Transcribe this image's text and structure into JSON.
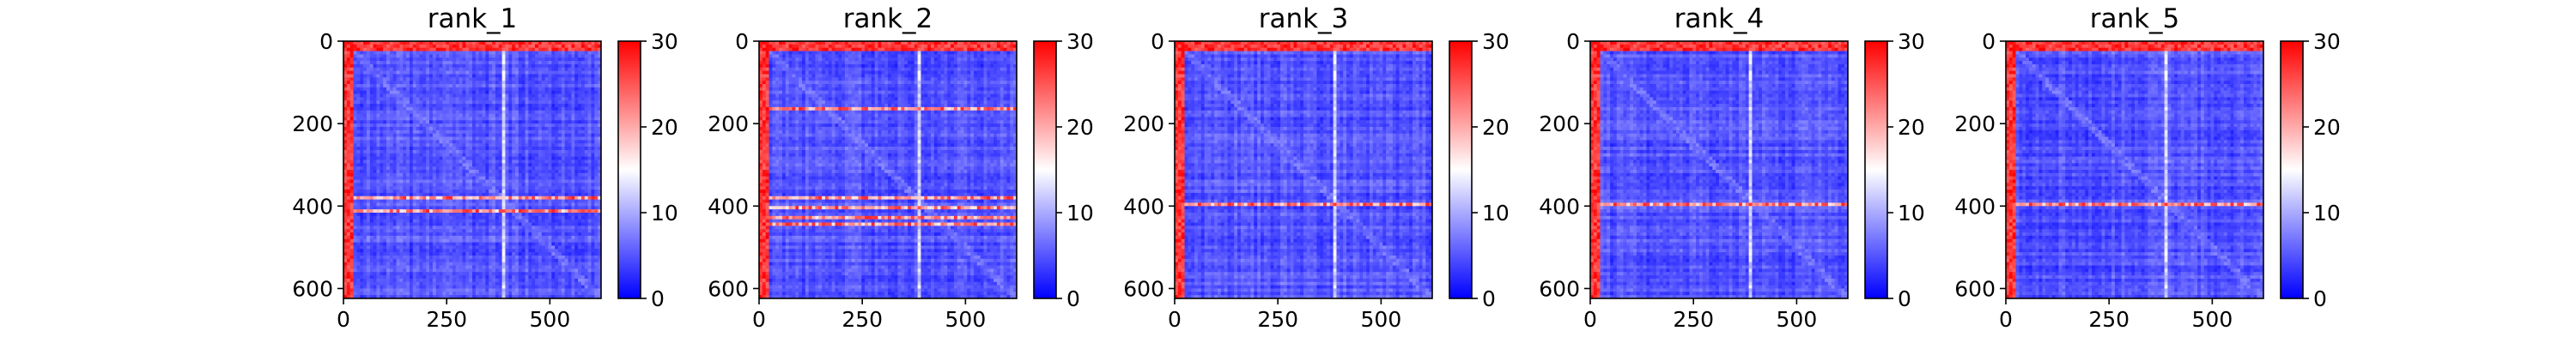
{
  "chart_data": [
    {
      "type": "heatmap",
      "title": "rank_1",
      "xticks": [
        0,
        250,
        500
      ],
      "yticks": [
        0,
        200,
        400,
        600
      ],
      "xlim": [
        0,
        624
      ],
      "ylim": [
        624,
        0
      ],
      "colorbar": {
        "ticks": [
          0,
          10,
          20,
          30
        ],
        "range": [
          0,
          30
        ],
        "colormap": "bwr"
      },
      "features": {
        "bright_left_columns": [
          0,
          25
        ],
        "bright_top_rows": [
          0,
          25
        ],
        "hot_rows": [
          380,
          410
        ],
        "hot_cols": [
          385
        ]
      }
    },
    {
      "type": "heatmap",
      "title": "rank_2",
      "xticks": [
        0,
        250,
        500
      ],
      "yticks": [
        0,
        200,
        400,
        600
      ],
      "xlim": [
        0,
        624
      ],
      "ylim": [
        624,
        0
      ],
      "colorbar": {
        "ticks": [
          0,
          10,
          20,
          30
        ],
        "range": [
          0,
          30
        ],
        "colormap": "bwr"
      },
      "features": {
        "bright_left_columns": [
          0,
          25
        ],
        "bright_top_rows": [
          0,
          25
        ],
        "hot_rows": [
          160,
          380,
          400,
          425,
          440
        ],
        "hot_cols": [
          385
        ]
      }
    },
    {
      "type": "heatmap",
      "title": "rank_3",
      "xticks": [
        0,
        250,
        500
      ],
      "yticks": [
        0,
        200,
        400,
        600
      ],
      "xlim": [
        0,
        624
      ],
      "ylim": [
        624,
        0
      ],
      "colorbar": {
        "ticks": [
          0,
          10,
          20,
          30
        ],
        "range": [
          0,
          30
        ],
        "colormap": "bwr"
      },
      "features": {
        "bright_left_columns": [
          0,
          25
        ],
        "bright_top_rows": [
          0,
          25
        ],
        "hot_rows": [
          395
        ],
        "hot_cols": [
          385
        ]
      }
    },
    {
      "type": "heatmap",
      "title": "rank_4",
      "xticks": [
        0,
        250,
        500
      ],
      "yticks": [
        0,
        200,
        400,
        600
      ],
      "xlim": [
        0,
        624
      ],
      "ylim": [
        624,
        0
      ],
      "colorbar": {
        "ticks": [
          0,
          10,
          20,
          30
        ],
        "range": [
          0,
          30
        ],
        "colormap": "bwr"
      },
      "features": {
        "bright_left_columns": [
          0,
          25
        ],
        "bright_top_rows": [
          0,
          25
        ],
        "hot_rows": [
          395
        ],
        "hot_cols": [
          385
        ]
      }
    },
    {
      "type": "heatmap",
      "title": "rank_5",
      "xticks": [
        0,
        250,
        500
      ],
      "yticks": [
        0,
        200,
        400,
        600
      ],
      "xlim": [
        0,
        624
      ],
      "ylim": [
        624,
        0
      ],
      "colorbar": {
        "ticks": [
          0,
          10,
          20,
          30
        ],
        "range": [
          0,
          30
        ],
        "colormap": "bwr"
      },
      "features": {
        "bright_left_columns": [
          0,
          25
        ],
        "bright_top_rows": [
          0,
          25
        ],
        "hot_rows": [
          395
        ],
        "hot_cols": [
          385
        ]
      }
    }
  ],
  "colors": {
    "low": "#0000ff",
    "mid": "#ffffff",
    "high": "#ff0000"
  }
}
